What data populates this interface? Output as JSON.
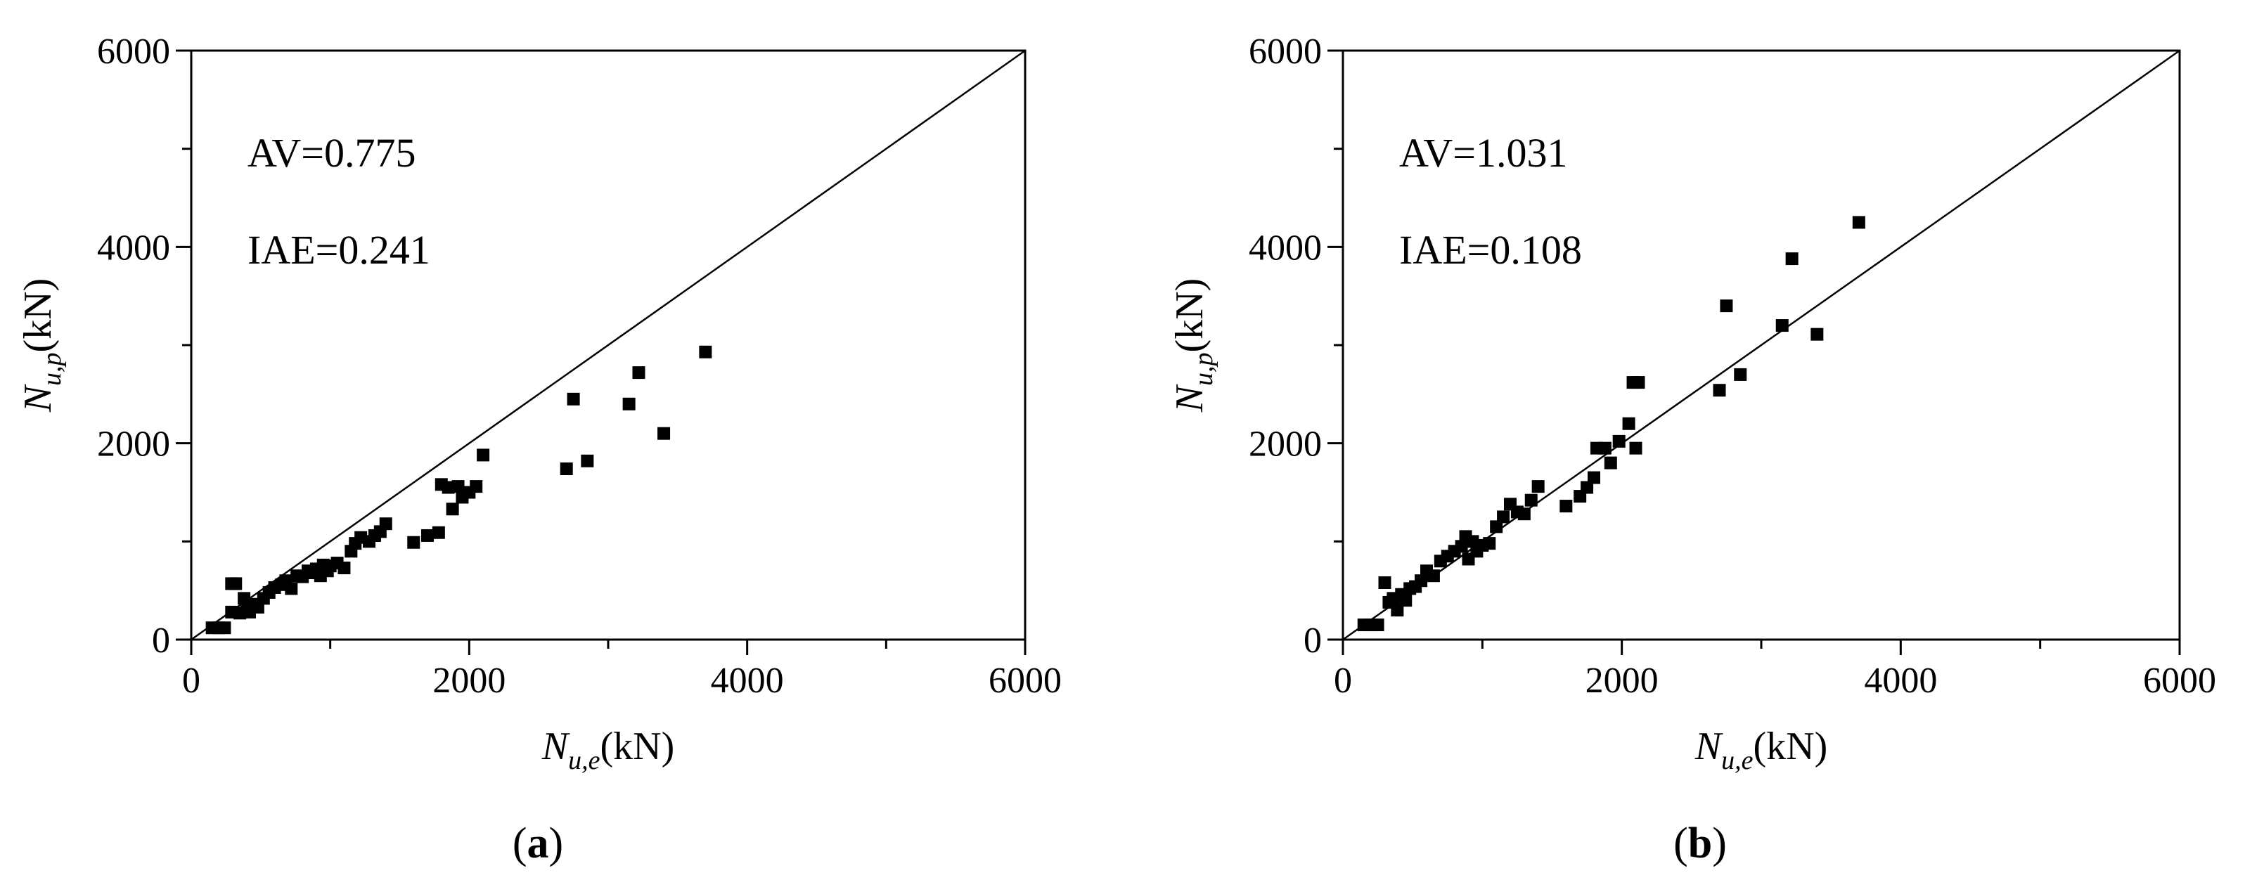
{
  "chart_data": [
    {
      "type": "scatter",
      "caption_letter": "a",
      "xlim": [
        0,
        6000
      ],
      "ylim": [
        0,
        6000
      ],
      "x_ticks": [
        0,
        2000,
        4000,
        6000
      ],
      "y_ticks": [
        0,
        2000,
        4000,
        6000
      ],
      "x_tick_labels": [
        "0",
        "2000",
        "4000",
        "6000"
      ],
      "y_tick_labels": [
        "0",
        "2000",
        "4000",
        "6000"
      ],
      "xlabel": {
        "symbol": "N",
        "subscript": "u,e",
        "unit": "(kN)"
      },
      "ylabel": {
        "symbol": "N",
        "subscript": "u,p",
        "unit": "(kN)"
      },
      "annotations": [
        "AV=0.775",
        "IAE=0.241"
      ],
      "reference_line": [
        [
          0,
          0
        ],
        [
          6000,
          6000
        ]
      ],
      "grid": false,
      "marker": "filled-square",
      "points": [
        [
          150,
          120
        ],
        [
          200,
          120
        ],
        [
          240,
          120
        ],
        [
          290,
          280
        ],
        [
          290,
          570
        ],
        [
          320,
          570
        ],
        [
          350,
          270
        ],
        [
          380,
          420
        ],
        [
          400,
          320
        ],
        [
          420,
          280
        ],
        [
          450,
          360
        ],
        [
          480,
          330
        ],
        [
          520,
          420
        ],
        [
          560,
          480
        ],
        [
          600,
          530
        ],
        [
          650,
          560
        ],
        [
          680,
          600
        ],
        [
          720,
          520
        ],
        [
          760,
          650
        ],
        [
          800,
          640
        ],
        [
          840,
          700
        ],
        [
          870,
          680
        ],
        [
          900,
          720
        ],
        [
          930,
          650
        ],
        [
          950,
          760
        ],
        [
          980,
          700
        ],
        [
          1000,
          750
        ],
        [
          1050,
          780
        ],
        [
          1100,
          730
        ],
        [
          1150,
          900
        ],
        [
          1180,
          980
        ],
        [
          1220,
          1040
        ],
        [
          1280,
          1000
        ],
        [
          1320,
          1060
        ],
        [
          1360,
          1100
        ],
        [
          1400,
          1180
        ],
        [
          1600,
          990
        ],
        [
          1700,
          1060
        ],
        [
          1780,
          1090
        ],
        [
          1800,
          1580
        ],
        [
          1850,
          1550
        ],
        [
          1880,
          1330
        ],
        [
          1920,
          1560
        ],
        [
          1950,
          1450
        ],
        [
          2000,
          1500
        ],
        [
          2050,
          1560
        ],
        [
          2100,
          1880
        ],
        [
          2700,
          1740
        ],
        [
          2750,
          2450
        ],
        [
          2850,
          1820
        ],
        [
          3150,
          2400
        ],
        [
          3220,
          2720
        ],
        [
          3400,
          2100
        ],
        [
          3700,
          2930
        ]
      ]
    },
    {
      "type": "scatter",
      "caption_letter": "b",
      "xlim": [
        0,
        6000
      ],
      "ylim": [
        0,
        6000
      ],
      "x_ticks": [
        0,
        2000,
        4000,
        6000
      ],
      "y_ticks": [
        0,
        2000,
        4000,
        6000
      ],
      "x_tick_labels": [
        "0",
        "2000",
        "4000",
        "6000"
      ],
      "y_tick_labels": [
        "0",
        "2000",
        "4000",
        "6000"
      ],
      "xlabel": {
        "symbol": "N",
        "subscript": "u,e",
        "unit": "(kN)"
      },
      "ylabel": {
        "symbol": "N",
        "subscript": "u,p",
        "unit": "(kN)"
      },
      "annotations": [
        "AV=1.031",
        "IAE=0.108"
      ],
      "reference_line": [
        [
          0,
          0
        ],
        [
          6000,
          6000
        ]
      ],
      "grid": false,
      "marker": "filled-square",
      "points": [
        [
          150,
          150
        ],
        [
          200,
          150
        ],
        [
          250,
          150
        ],
        [
          300,
          580
        ],
        [
          330,
          380
        ],
        [
          360,
          420
        ],
        [
          390,
          300
        ],
        [
          420,
          460
        ],
        [
          450,
          400
        ],
        [
          480,
          520
        ],
        [
          520,
          540
        ],
        [
          560,
          600
        ],
        [
          600,
          700
        ],
        [
          650,
          650
        ],
        [
          700,
          800
        ],
        [
          750,
          850
        ],
        [
          800,
          900
        ],
        [
          850,
          950
        ],
        [
          880,
          1050
        ],
        [
          900,
          820
        ],
        [
          930,
          1000
        ],
        [
          960,
          900
        ],
        [
          1000,
          960
        ],
        [
          1050,
          980
        ],
        [
          1100,
          1150
        ],
        [
          1150,
          1250
        ],
        [
          1200,
          1380
        ],
        [
          1250,
          1300
        ],
        [
          1300,
          1280
        ],
        [
          1350,
          1420
        ],
        [
          1400,
          1560
        ],
        [
          1600,
          1360
        ],
        [
          1700,
          1460
        ],
        [
          1750,
          1550
        ],
        [
          1800,
          1650
        ],
        [
          1820,
          1950
        ],
        [
          1880,
          1950
        ],
        [
          1920,
          1800
        ],
        [
          1980,
          2020
        ],
        [
          2050,
          2200
        ],
        [
          2080,
          2620
        ],
        [
          2100,
          1950
        ],
        [
          2120,
          2620
        ],
        [
          2700,
          2540
        ],
        [
          2750,
          3400
        ],
        [
          2850,
          2700
        ],
        [
          3150,
          3200
        ],
        [
          3220,
          3880
        ],
        [
          3400,
          3110
        ],
        [
          3700,
          4250
        ]
      ]
    }
  ]
}
